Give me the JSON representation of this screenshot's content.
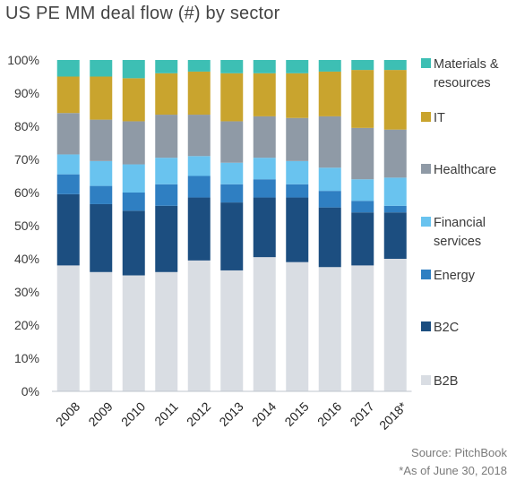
{
  "title": "US PE MM deal flow (#) by sector",
  "source": "Source: PitchBook",
  "footnote": "*As of June 30, 2018",
  "colors": {
    "B2B": "#d9dde3",
    "B2C": "#1c4e80",
    "Energy": "#2f7fc2",
    "Financial services": "#69c3ef",
    "Healthcare": "#8f9aa6",
    "IT": "#c9a42e",
    "Materials & resources": "#3dbfb4"
  },
  "chart_data": {
    "type": "bar",
    "stacked": true,
    "title": "US PE MM deal flow (#) by sector",
    "categories": [
      "2008",
      "2009",
      "2010",
      "2011",
      "2012",
      "2013",
      "2014",
      "2015",
      "2016",
      "2017",
      "2018*"
    ],
    "ylim": [
      0,
      100
    ],
    "yticks": [
      "0%",
      "10%",
      "20%",
      "30%",
      "40%",
      "50%",
      "60%",
      "70%",
      "80%",
      "90%",
      "100%"
    ],
    "legend_position": "right",
    "series": [
      {
        "name": "B2B",
        "values": [
          38,
          36,
          35,
          36,
          39.5,
          36.5,
          40.5,
          39,
          37.5,
          38,
          40
        ]
      },
      {
        "name": "B2C",
        "values": [
          21.5,
          20.5,
          19.5,
          20,
          19,
          20.5,
          18,
          19.5,
          18,
          16,
          14
        ]
      },
      {
        "name": "Energy",
        "values": [
          6,
          5.5,
          5.5,
          6.5,
          6.5,
          5.5,
          5.5,
          4,
          5,
          3.5,
          2
        ]
      },
      {
        "name": "Financial services",
        "values": [
          6,
          7.5,
          8.5,
          8,
          6,
          6.5,
          6.5,
          7,
          7,
          6.5,
          8.5
        ]
      },
      {
        "name": "Healthcare",
        "values": [
          12.5,
          12.5,
          13,
          13,
          12.5,
          12.5,
          12.5,
          13,
          15.5,
          15.5,
          14.5
        ]
      },
      {
        "name": "IT",
        "values": [
          11,
          13,
          13,
          12.5,
          13,
          14.5,
          13,
          13.5,
          13.5,
          17.5,
          18
        ]
      },
      {
        "name": "Materials & resources",
        "values": [
          5,
          5,
          5.5,
          4,
          3.5,
          4,
          4,
          4,
          3.5,
          3,
          3
        ]
      }
    ]
  },
  "legend": [
    {
      "name": "Materials &",
      "name2": "resources",
      "key": "Materials & resources"
    },
    {
      "name": "IT",
      "name2": "",
      "key": "IT"
    },
    {
      "name": "Healthcare",
      "name2": "",
      "key": "Healthcare"
    },
    {
      "name": "Financial",
      "name2": "services",
      "key": "Financial services"
    },
    {
      "name": "Energy",
      "name2": "",
      "key": "Energy"
    },
    {
      "name": "B2C",
      "name2": "",
      "key": "B2C"
    },
    {
      "name": "B2B",
      "name2": "",
      "key": "B2B"
    }
  ]
}
